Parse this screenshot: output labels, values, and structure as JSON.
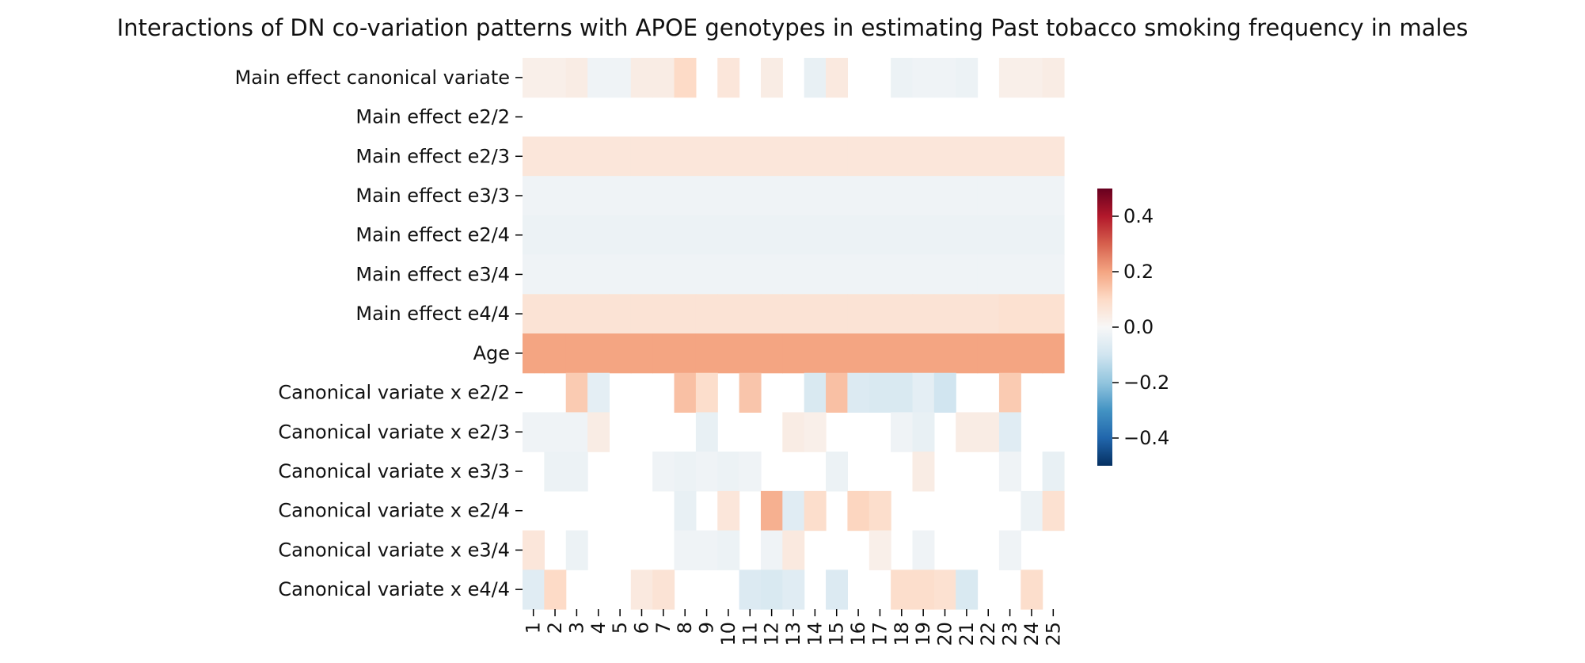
{
  "chart_data": {
    "type": "heatmap",
    "title": "Interactions of DN co-variation patterns with APOE genotypes in estimating Past tobacco smoking frequency in males",
    "xlabel": "",
    "ylabel": "",
    "x_categories": [
      "1",
      "2",
      "3",
      "4",
      "5",
      "6",
      "7",
      "8",
      "9",
      "10",
      "11",
      "12",
      "13",
      "14",
      "15",
      "16",
      "17",
      "18",
      "19",
      "20",
      "21",
      "22",
      "23",
      "24",
      "25"
    ],
    "y_categories": [
      "Main effect canonical variate",
      "Main effect e2/2",
      "Main effect e2/3",
      "Main effect e3/3",
      "Main effect e2/4",
      "Main effect e3/4",
      "Main effect e4/4",
      "Age",
      "Canonical variate x e2/2",
      "Canonical variate x e2/3",
      "Canonical variate x e3/3",
      "Canonical variate x e2/4",
      "Canonical variate x e3/4",
      "Canonical variate x e4/4"
    ],
    "values": [
      [
        0.03,
        0.03,
        0.04,
        -0.02,
        -0.02,
        0.04,
        0.04,
        0.1,
        null,
        0.06,
        null,
        0.04,
        null,
        -0.04,
        0.05,
        null,
        null,
        -0.03,
        -0.02,
        -0.02,
        -0.03,
        null,
        0.03,
        0.03,
        0.04
      ],
      [
        null,
        null,
        null,
        null,
        null,
        null,
        null,
        null,
        null,
        null,
        null,
        null,
        null,
        null,
        null,
        null,
        null,
        null,
        null,
        null,
        null,
        null,
        null,
        null,
        null
      ],
      [
        0.06,
        0.06,
        0.06,
        0.06,
        0.06,
        0.06,
        0.06,
        0.06,
        0.06,
        0.06,
        0.06,
        0.06,
        0.06,
        0.06,
        0.06,
        0.06,
        0.06,
        0.06,
        0.06,
        0.06,
        0.06,
        0.06,
        0.06,
        0.06,
        0.06
      ],
      [
        -0.02,
        -0.02,
        -0.02,
        -0.02,
        -0.02,
        -0.02,
        -0.02,
        -0.02,
        -0.02,
        -0.02,
        -0.02,
        -0.02,
        -0.02,
        -0.02,
        -0.02,
        -0.02,
        -0.02,
        -0.02,
        -0.02,
        -0.02,
        -0.02,
        -0.02,
        -0.02,
        -0.02,
        -0.02
      ],
      [
        -0.03,
        -0.03,
        -0.03,
        -0.03,
        -0.03,
        -0.03,
        -0.03,
        -0.03,
        -0.03,
        -0.03,
        -0.03,
        -0.03,
        -0.03,
        -0.03,
        -0.03,
        -0.03,
        -0.03,
        -0.03,
        -0.03,
        -0.03,
        -0.03,
        -0.03,
        -0.03,
        -0.03,
        -0.03
      ],
      [
        -0.02,
        -0.02,
        -0.02,
        -0.02,
        -0.02,
        -0.02,
        -0.02,
        -0.02,
        -0.02,
        -0.02,
        -0.02,
        -0.02,
        -0.02,
        -0.02,
        -0.02,
        -0.02,
        -0.02,
        -0.02,
        -0.02,
        -0.02,
        -0.02,
        -0.02,
        -0.02,
        -0.02,
        -0.02
      ],
      [
        0.07,
        0.07,
        0.07,
        0.07,
        0.07,
        0.07,
        0.07,
        0.07,
        0.07,
        0.07,
        0.07,
        0.07,
        0.07,
        0.07,
        0.07,
        0.07,
        0.07,
        0.07,
        0.07,
        0.07,
        0.07,
        0.07,
        0.08,
        0.08,
        0.08
      ],
      [
        0.2,
        0.2,
        0.2,
        0.2,
        0.2,
        0.2,
        0.2,
        0.2,
        0.2,
        0.2,
        0.2,
        0.2,
        0.2,
        0.2,
        0.2,
        0.2,
        0.2,
        0.2,
        0.2,
        0.2,
        0.2,
        0.2,
        0.2,
        0.2,
        0.2
      ],
      [
        null,
        null,
        0.13,
        -0.05,
        null,
        null,
        null,
        0.15,
        0.09,
        null,
        0.14,
        null,
        null,
        -0.08,
        0.15,
        -0.07,
        -0.08,
        -0.08,
        -0.05,
        -0.1,
        null,
        null,
        0.13,
        null,
        null
      ],
      [
        -0.02,
        -0.02,
        -0.02,
        0.04,
        null,
        null,
        null,
        null,
        -0.04,
        null,
        null,
        null,
        0.04,
        0.03,
        null,
        null,
        null,
        -0.02,
        -0.04,
        null,
        0.04,
        0.04,
        -0.06,
        null,
        null
      ],
      [
        null,
        -0.03,
        -0.03,
        null,
        null,
        null,
        -0.02,
        -0.03,
        -0.02,
        -0.03,
        -0.02,
        null,
        null,
        null,
        -0.03,
        null,
        null,
        null,
        0.04,
        null,
        null,
        null,
        -0.02,
        null,
        -0.04
      ],
      [
        null,
        null,
        null,
        null,
        null,
        null,
        null,
        -0.04,
        null,
        0.06,
        null,
        0.18,
        -0.06,
        0.09,
        null,
        0.11,
        0.09,
        null,
        null,
        null,
        null,
        null,
        null,
        -0.03,
        0.08
      ],
      [
        0.06,
        null,
        -0.03,
        null,
        null,
        null,
        null,
        -0.02,
        -0.02,
        -0.03,
        null,
        -0.02,
        0.05,
        null,
        null,
        null,
        0.03,
        null,
        -0.02,
        null,
        null,
        null,
        -0.02,
        null,
        null
      ],
      [
        -0.06,
        0.1,
        null,
        null,
        null,
        0.05,
        0.07,
        null,
        null,
        null,
        -0.07,
        -0.08,
        -0.06,
        null,
        -0.07,
        null,
        null,
        0.09,
        0.09,
        0.08,
        -0.08,
        null,
        null,
        0.09,
        null
      ]
    ],
    "vmin": -0.5,
    "vmax": 0.5,
    "colormap": "RdBu_r",
    "colorbar": {
      "ticks": [
        0.4,
        0.2,
        0.0,
        -0.2,
        -0.4
      ],
      "tick_labels": [
        "0.4",
        "0.2",
        "0.0",
        "−0.2",
        "−0.4"
      ],
      "placement": "right"
    }
  }
}
